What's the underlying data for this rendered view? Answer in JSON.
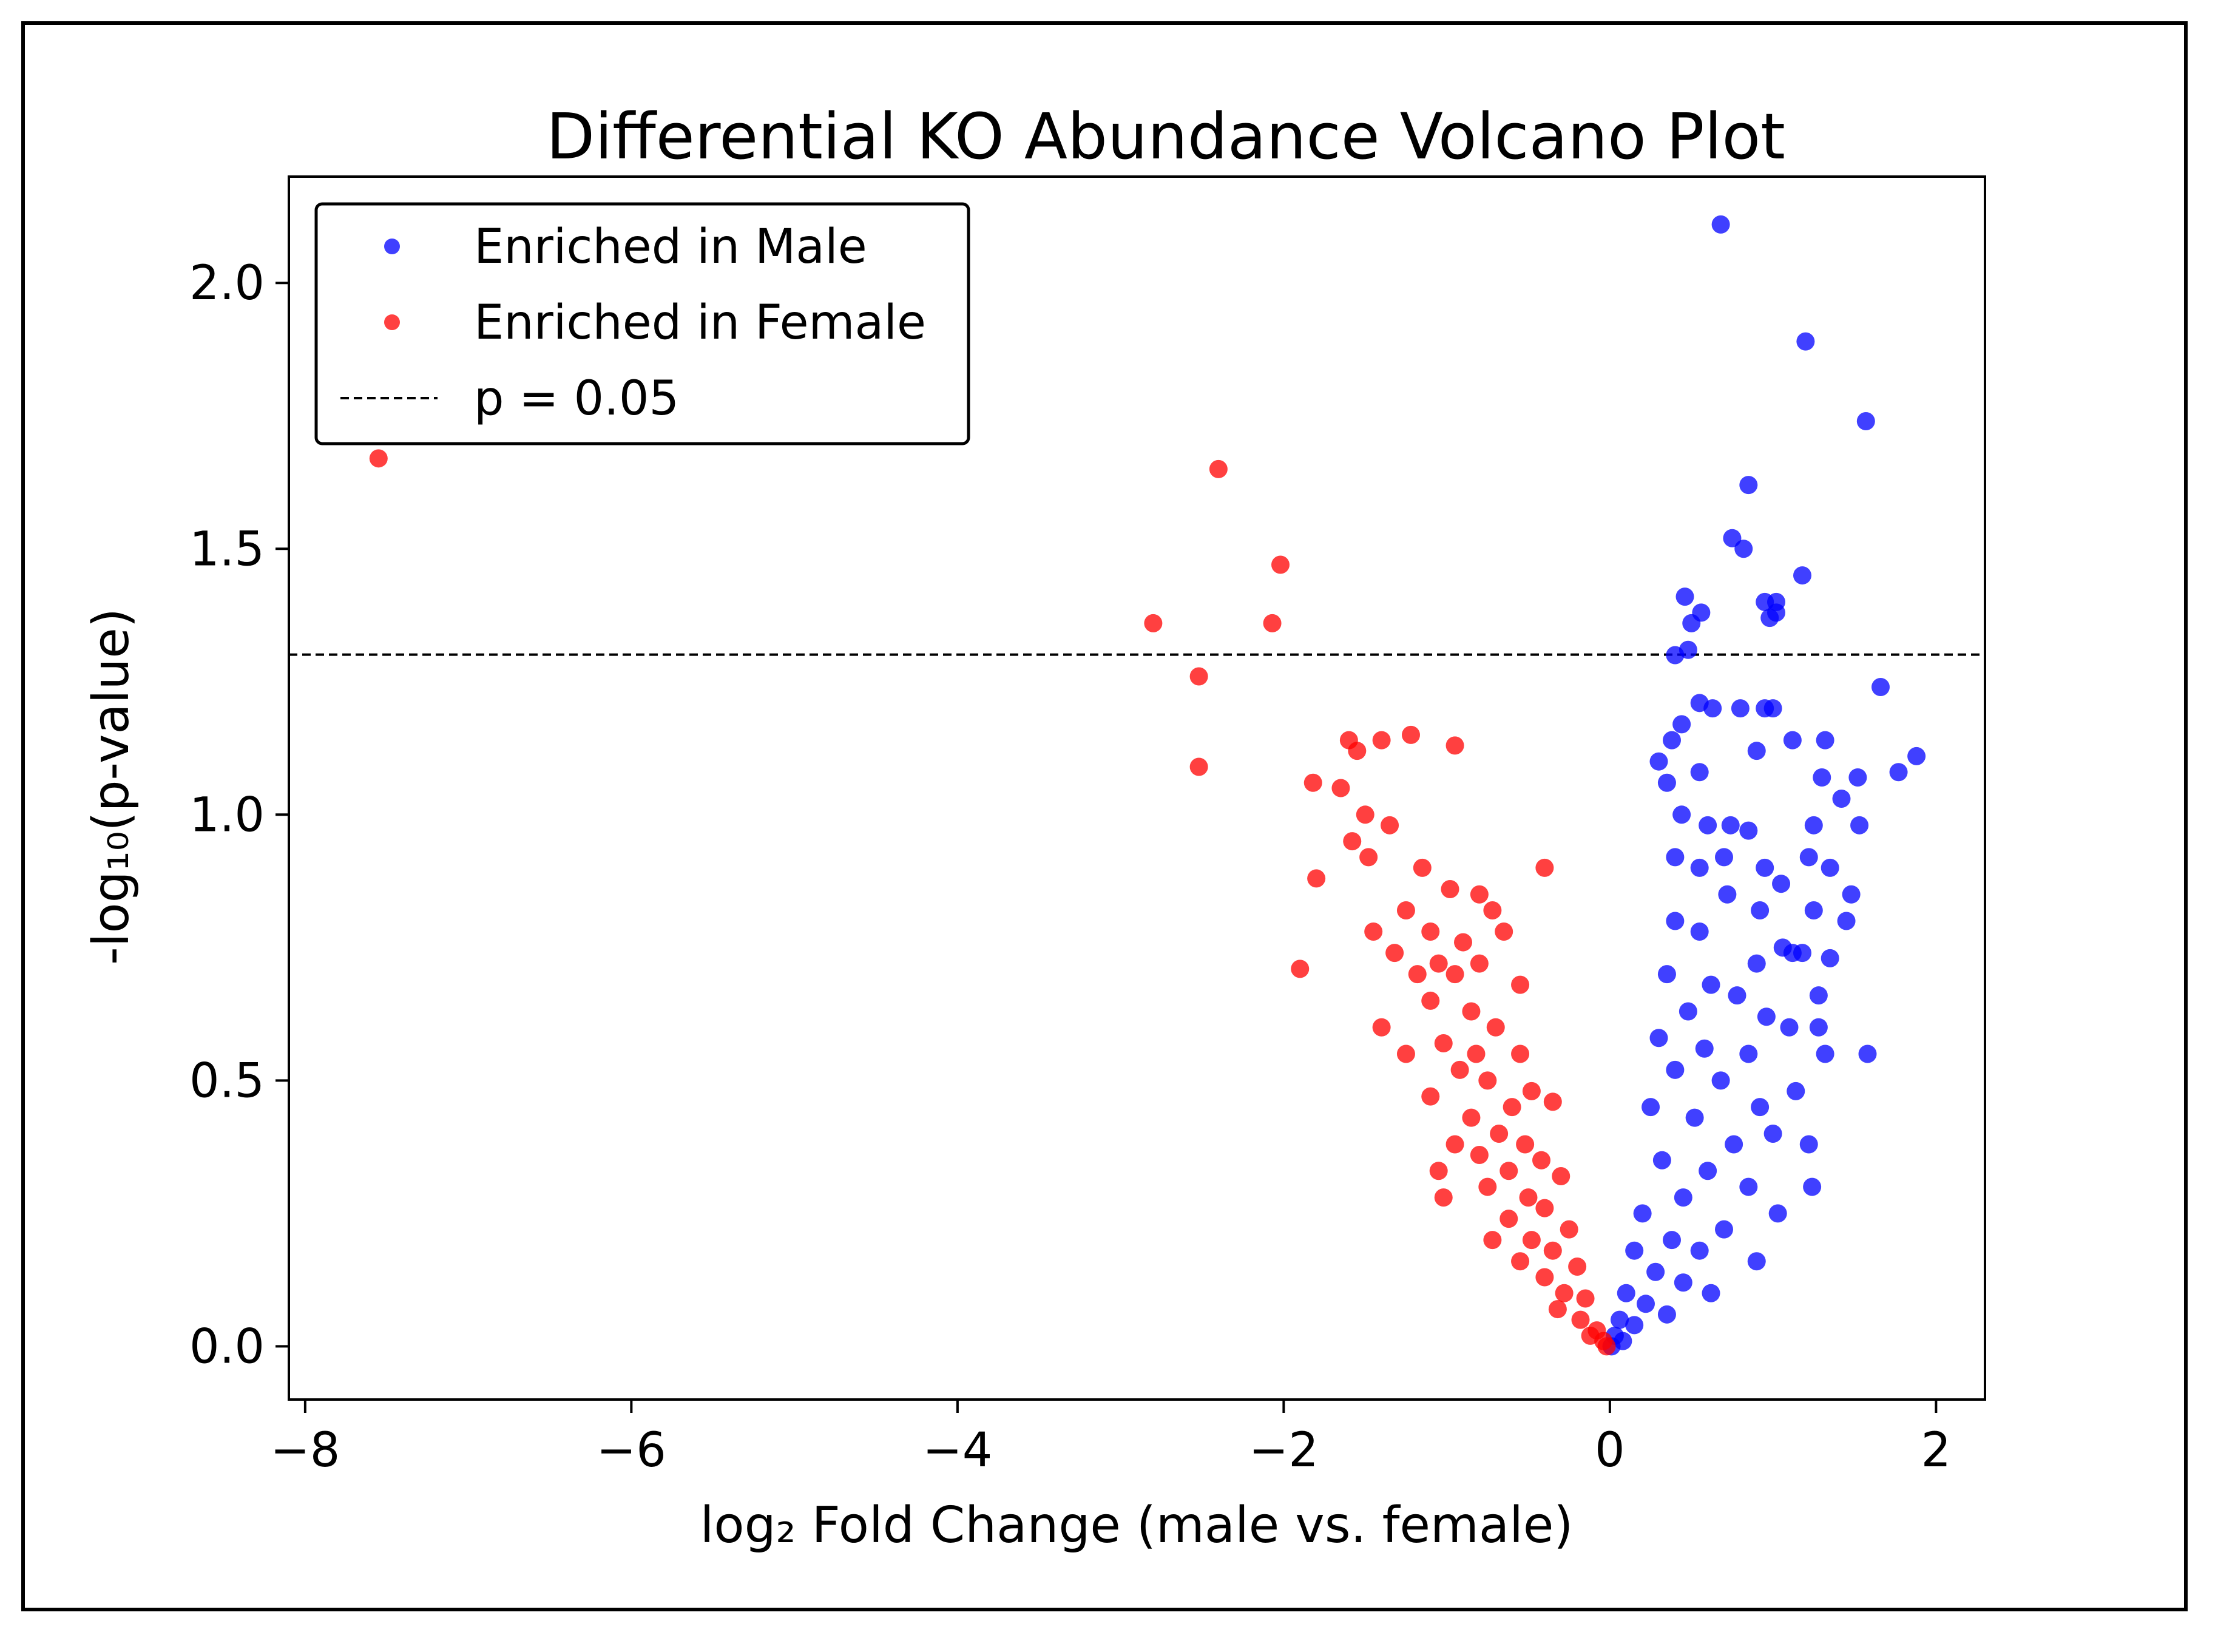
{
  "chart_data": {
    "type": "scatter",
    "title": "Differential KO Abundance Volcano Plot",
    "xlabel": "log₂ Fold Change (male vs. female)",
    "ylabel": "-log₁₀(p-value)",
    "xlim": [
      -8.1,
      2.3
    ],
    "ylim": [
      -0.1,
      2.2
    ],
    "xticks": [
      -8,
      -6,
      -4,
      -2,
      0,
      2
    ],
    "xtick_labels": [
      "−8",
      "−6",
      "−4",
      "−2",
      "0",
      "2"
    ],
    "yticks": [
      0.0,
      0.5,
      1.0,
      1.5,
      2.0
    ],
    "ytick_labels": [
      "0.0",
      "0.5",
      "1.0",
      "1.5",
      "2.0"
    ],
    "threshold": {
      "y": 1.301,
      "label": "p = 0.05",
      "style": "dashed",
      "color": "#000000"
    },
    "legend": {
      "position": "upper-left"
    },
    "series": [
      {
        "name": "Enriched in Male",
        "color": "#0000ff",
        "points": [
          [
            0.68,
            2.11
          ],
          [
            1.2,
            1.89
          ],
          [
            1.57,
            1.74
          ],
          [
            0.85,
            1.62
          ],
          [
            0.75,
            1.52
          ],
          [
            0.82,
            1.5
          ],
          [
            1.18,
            1.45
          ],
          [
            0.46,
            1.41
          ],
          [
            0.56,
            1.38
          ],
          [
            0.5,
            1.36
          ],
          [
            0.95,
            1.4
          ],
          [
            0.98,
            1.37
          ],
          [
            1.02,
            1.4
          ],
          [
            0.48,
            1.31
          ],
          [
            0.4,
            1.3
          ],
          [
            1.02,
            1.38
          ],
          [
            1.66,
            1.24
          ],
          [
            0.55,
            1.21
          ],
          [
            0.63,
            1.2
          ],
          [
            0.95,
            1.2
          ],
          [
            1.0,
            1.2
          ],
          [
            0.8,
            1.2
          ],
          [
            0.44,
            1.17
          ],
          [
            0.38,
            1.14
          ],
          [
            0.9,
            1.12
          ],
          [
            1.12,
            1.14
          ],
          [
            1.32,
            1.14
          ],
          [
            1.88,
            1.11
          ],
          [
            1.77,
            1.08
          ],
          [
            1.52,
            1.07
          ],
          [
            1.3,
            1.07
          ],
          [
            0.3,
            1.1
          ],
          [
            0.35,
            1.06
          ],
          [
            0.55,
            1.08
          ],
          [
            1.42,
            1.03
          ],
          [
            0.44,
            1.0
          ],
          [
            0.6,
            0.98
          ],
          [
            0.74,
            0.98
          ],
          [
            1.25,
            0.98
          ],
          [
            1.53,
            0.98
          ],
          [
            0.85,
            0.97
          ],
          [
            0.7,
            0.92
          ],
          [
            0.4,
            0.92
          ],
          [
            0.55,
            0.9
          ],
          [
            0.95,
            0.9
          ],
          [
            1.22,
            0.92
          ],
          [
            1.35,
            0.9
          ],
          [
            0.72,
            0.85
          ],
          [
            1.05,
            0.87
          ],
          [
            1.48,
            0.85
          ],
          [
            0.92,
            0.82
          ],
          [
            1.25,
            0.82
          ],
          [
            1.45,
            0.8
          ],
          [
            0.4,
            0.8
          ],
          [
            0.55,
            0.78
          ],
          [
            1.06,
            0.75
          ],
          [
            1.12,
            0.74
          ],
          [
            1.18,
            0.74
          ],
          [
            1.35,
            0.73
          ],
          [
            0.9,
            0.72
          ],
          [
            0.35,
            0.7
          ],
          [
            0.62,
            0.68
          ],
          [
            0.78,
            0.66
          ],
          [
            1.28,
            0.66
          ],
          [
            0.48,
            0.63
          ],
          [
            0.96,
            0.62
          ],
          [
            1.1,
            0.6
          ],
          [
            1.28,
            0.6
          ],
          [
            0.3,
            0.58
          ],
          [
            0.58,
            0.56
          ],
          [
            0.85,
            0.55
          ],
          [
            1.32,
            0.55
          ],
          [
            1.58,
            0.55
          ],
          [
            0.4,
            0.52
          ],
          [
            0.68,
            0.5
          ],
          [
            1.14,
            0.48
          ],
          [
            0.92,
            0.45
          ],
          [
            0.25,
            0.45
          ],
          [
            0.52,
            0.43
          ],
          [
            1.0,
            0.4
          ],
          [
            0.76,
            0.38
          ],
          [
            1.22,
            0.38
          ],
          [
            0.32,
            0.35
          ],
          [
            0.6,
            0.33
          ],
          [
            0.85,
            0.3
          ],
          [
            1.24,
            0.3
          ],
          [
            0.45,
            0.28
          ],
          [
            1.03,
            0.25
          ],
          [
            0.2,
            0.25
          ],
          [
            0.7,
            0.22
          ],
          [
            0.38,
            0.2
          ],
          [
            0.55,
            0.18
          ],
          [
            0.9,
            0.16
          ],
          [
            0.15,
            0.18
          ],
          [
            0.28,
            0.14
          ],
          [
            0.45,
            0.12
          ],
          [
            0.62,
            0.1
          ],
          [
            0.1,
            0.1
          ],
          [
            0.22,
            0.08
          ],
          [
            0.35,
            0.06
          ],
          [
            0.06,
            0.05
          ],
          [
            0.15,
            0.04
          ],
          [
            0.03,
            0.02
          ],
          [
            0.08,
            0.01
          ],
          [
            0.01,
            0.0
          ]
        ]
      },
      {
        "name": "Enriched in Female",
        "color": "#ff0000",
        "points": [
          [
            -7.55,
            1.67
          ],
          [
            -2.4,
            1.65
          ],
          [
            -2.02,
            1.47
          ],
          [
            -2.8,
            1.36
          ],
          [
            -2.07,
            1.36
          ],
          [
            -2.52,
            1.26
          ],
          [
            -2.52,
            1.09
          ],
          [
            -1.6,
            1.14
          ],
          [
            -1.55,
            1.12
          ],
          [
            -1.4,
            1.14
          ],
          [
            -1.22,
            1.15
          ],
          [
            -0.95,
            1.13
          ],
          [
            -1.82,
            1.06
          ],
          [
            -1.65,
            1.05
          ],
          [
            -1.5,
            1.0
          ],
          [
            -1.35,
            0.98
          ],
          [
            -1.58,
            0.95
          ],
          [
            -1.48,
            0.92
          ],
          [
            -1.15,
            0.9
          ],
          [
            -0.4,
            0.9
          ],
          [
            -1.8,
            0.88
          ],
          [
            -0.98,
            0.86
          ],
          [
            -0.8,
            0.85
          ],
          [
            -0.72,
            0.82
          ],
          [
            -1.25,
            0.82
          ],
          [
            -1.45,
            0.78
          ],
          [
            -1.1,
            0.78
          ],
          [
            -0.65,
            0.78
          ],
          [
            -0.9,
            0.76
          ],
          [
            -1.32,
            0.74
          ],
          [
            -1.05,
            0.72
          ],
          [
            -0.8,
            0.72
          ],
          [
            -1.9,
            0.71
          ],
          [
            -1.18,
            0.7
          ],
          [
            -0.95,
            0.7
          ],
          [
            -0.55,
            0.68
          ],
          [
            -1.1,
            0.65
          ],
          [
            -0.85,
            0.63
          ],
          [
            -1.4,
            0.6
          ],
          [
            -0.7,
            0.6
          ],
          [
            -1.02,
            0.57
          ],
          [
            -0.82,
            0.55
          ],
          [
            -1.25,
            0.55
          ],
          [
            -0.55,
            0.55
          ],
          [
            -0.92,
            0.52
          ],
          [
            -0.75,
            0.5
          ],
          [
            -0.48,
            0.48
          ],
          [
            -1.1,
            0.47
          ],
          [
            -0.6,
            0.45
          ],
          [
            -0.85,
            0.43
          ],
          [
            -0.35,
            0.46
          ],
          [
            -0.68,
            0.4
          ],
          [
            -0.52,
            0.38
          ],
          [
            -0.95,
            0.38
          ],
          [
            -0.8,
            0.36
          ],
          [
            -0.42,
            0.35
          ],
          [
            -0.62,
            0.33
          ],
          [
            -1.05,
            0.33
          ],
          [
            -0.3,
            0.32
          ],
          [
            -0.75,
            0.3
          ],
          [
            -0.5,
            0.28
          ],
          [
            -1.02,
            0.28
          ],
          [
            -0.4,
            0.26
          ],
          [
            -0.62,
            0.24
          ],
          [
            -0.25,
            0.22
          ],
          [
            -0.48,
            0.2
          ],
          [
            -0.72,
            0.2
          ],
          [
            -0.35,
            0.18
          ],
          [
            -0.55,
            0.16
          ],
          [
            -0.2,
            0.15
          ],
          [
            -0.4,
            0.13
          ],
          [
            -0.28,
            0.1
          ],
          [
            -0.15,
            0.09
          ],
          [
            -0.32,
            0.07
          ],
          [
            -0.18,
            0.05
          ],
          [
            -0.08,
            0.03
          ],
          [
            -0.12,
            0.02
          ],
          [
            -0.04,
            0.01
          ],
          [
            -0.02,
            0.0
          ]
        ]
      }
    ]
  }
}
